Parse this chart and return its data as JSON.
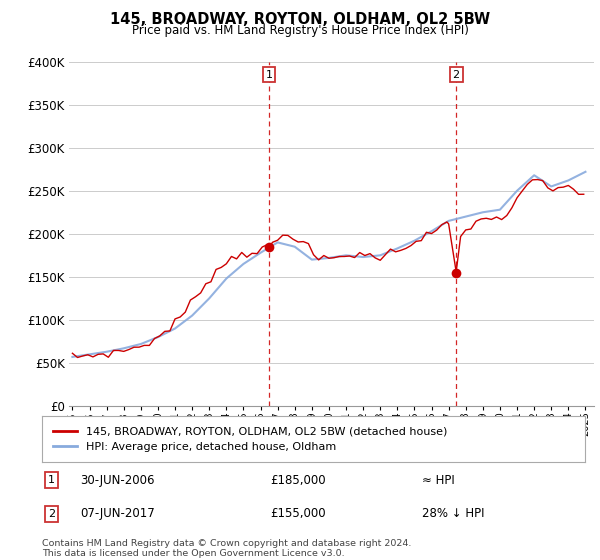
{
  "title": "145, BROADWAY, ROYTON, OLDHAM, OL2 5BW",
  "subtitle": "Price paid vs. HM Land Registry's House Price Index (HPI)",
  "ylim": [
    0,
    400000
  ],
  "xlim_start": 1994.8,
  "xlim_end": 2025.5,
  "sale1_x": 2006.5,
  "sale1_y": 185000,
  "sale1_label": "1",
  "sale1_date": "30-JUN-2006",
  "sale1_price": "£185,000",
  "sale1_note": "≈ HPI",
  "sale2_x": 2017.44,
  "sale2_y": 155000,
  "sale2_label": "2",
  "sale2_date": "07-JUN-2017",
  "sale2_price": "£155,000",
  "sale2_note": "28% ↓ HPI",
  "red_line_color": "#cc0000",
  "blue_line_color": "#88aadd",
  "marker_color": "#cc0000",
  "vline_color": "#cc0000",
  "background_color": "#ffffff",
  "grid_color": "#cccccc",
  "legend_label_red": "145, BROADWAY, ROYTON, OLDHAM, OL2 5BW (detached house)",
  "legend_label_blue": "HPI: Average price, detached house, Oldham",
  "footer": "Contains HM Land Registry data © Crown copyright and database right 2024.\nThis data is licensed under the Open Government Licence v3.0.",
  "hpi_years": [
    1995,
    1996,
    1997,
    1998,
    1999,
    2000,
    2001,
    2002,
    2003,
    2004,
    2005,
    2006,
    2007,
    2008,
    2009,
    2010,
    2011,
    2012,
    2013,
    2014,
    2015,
    2016,
    2017,
    2018,
    2019,
    2020,
    2021,
    2022,
    2023,
    2024,
    2025
  ],
  "hpi_vals": [
    57000,
    60000,
    63000,
    67000,
    72000,
    80000,
    90000,
    105000,
    125000,
    148000,
    165000,
    178000,
    190000,
    185000,
    170000,
    172000,
    175000,
    173000,
    175000,
    183000,
    192000,
    203000,
    215000,
    220000,
    225000,
    228000,
    250000,
    268000,
    255000,
    262000,
    272000
  ],
  "prop_years": [
    1995,
    1995.3,
    1995.6,
    1995.9,
    1996.2,
    1996.5,
    1996.8,
    1997.1,
    1997.4,
    1997.7,
    1998.0,
    1998.3,
    1998.6,
    1998.9,
    1999.2,
    1999.5,
    1999.8,
    2000.1,
    2000.4,
    2000.7,
    2001.0,
    2001.3,
    2001.6,
    2001.9,
    2002.2,
    2002.5,
    2002.8,
    2003.1,
    2003.4,
    2003.7,
    2004.0,
    2004.3,
    2004.6,
    2004.9,
    2005.2,
    2005.5,
    2005.8,
    2006.1,
    2006.4,
    2006.5,
    2006.7,
    2007.0,
    2007.3,
    2007.6,
    2007.9,
    2008.2,
    2008.5,
    2008.8,
    2009.1,
    2009.4,
    2009.7,
    2010.0,
    2010.3,
    2010.6,
    2010.9,
    2011.2,
    2011.5,
    2011.8,
    2012.1,
    2012.4,
    2012.7,
    2013.0,
    2013.3,
    2013.6,
    2013.9,
    2014.2,
    2014.5,
    2014.8,
    2015.1,
    2015.4,
    2015.7,
    2016.0,
    2016.3,
    2016.6,
    2016.9,
    2017.0,
    2017.44,
    2017.7,
    2018.0,
    2018.3,
    2018.6,
    2018.9,
    2019.2,
    2019.5,
    2019.8,
    2020.1,
    2020.4,
    2020.7,
    2021.0,
    2021.3,
    2021.6,
    2021.9,
    2022.2,
    2022.5,
    2022.8,
    2023.1,
    2023.4,
    2023.7,
    2024.0,
    2024.3,
    2024.6,
    2024.9
  ],
  "prop_vals": [
    57000,
    57500,
    58000,
    58500,
    59000,
    60000,
    60500,
    61000,
    62000,
    63000,
    65000,
    66000,
    67000,
    69000,
    71000,
    74000,
    77000,
    81000,
    86000,
    91000,
    97000,
    103000,
    110000,
    118000,
    127000,
    135000,
    143000,
    150000,
    156000,
    162000,
    167000,
    171000,
    175000,
    177000,
    178000,
    179000,
    180000,
    181000,
    183000,
    185000,
    188000,
    193000,
    197000,
    200000,
    198000,
    195000,
    190000,
    183000,
    175000,
    171000,
    170000,
    171000,
    172000,
    173000,
    174000,
    175000,
    176000,
    177000,
    175000,
    174000,
    173000,
    174000,
    176000,
    178000,
    180000,
    183000,
    186000,
    189000,
    192000,
    195000,
    198000,
    201000,
    204000,
    207000,
    210000,
    212000,
    155000,
    195000,
    205000,
    210000,
    213000,
    215000,
    217000,
    219000,
    220000,
    218000,
    222000,
    227000,
    238000,
    248000,
    256000,
    261000,
    263000,
    262000,
    255000,
    250000,
    248000,
    252000,
    257000,
    253000,
    248000,
    245000
  ]
}
